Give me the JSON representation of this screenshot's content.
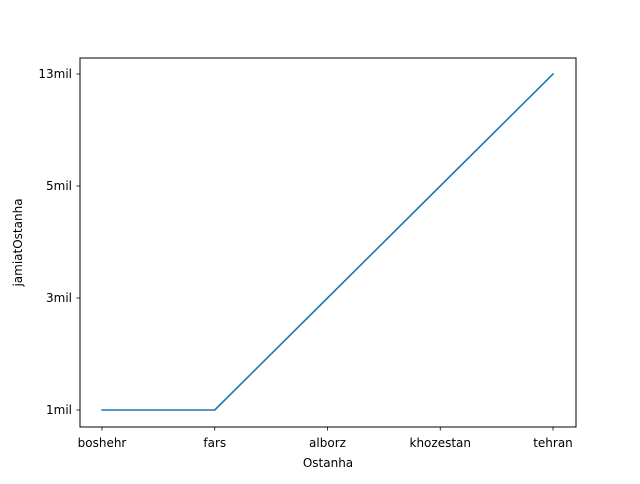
{
  "chart_data": {
    "type": "line",
    "title": "",
    "xlabel": "Ostanha",
    "ylabel": "jamiatOstanha",
    "categories": [
      "boshehr",
      "fars",
      "alborz",
      "khozestan",
      "tehran"
    ],
    "y_ticks": [
      "1mil",
      "3mil",
      "5mil",
      "13mil"
    ],
    "y_axis_type": "categorical",
    "series": [
      {
        "values": [
          "1mil",
          "1mil",
          "3mil",
          "5mil",
          "13mil"
        ],
        "color": "#1f77b4"
      }
    ],
    "grid": false,
    "legend": "none"
  }
}
